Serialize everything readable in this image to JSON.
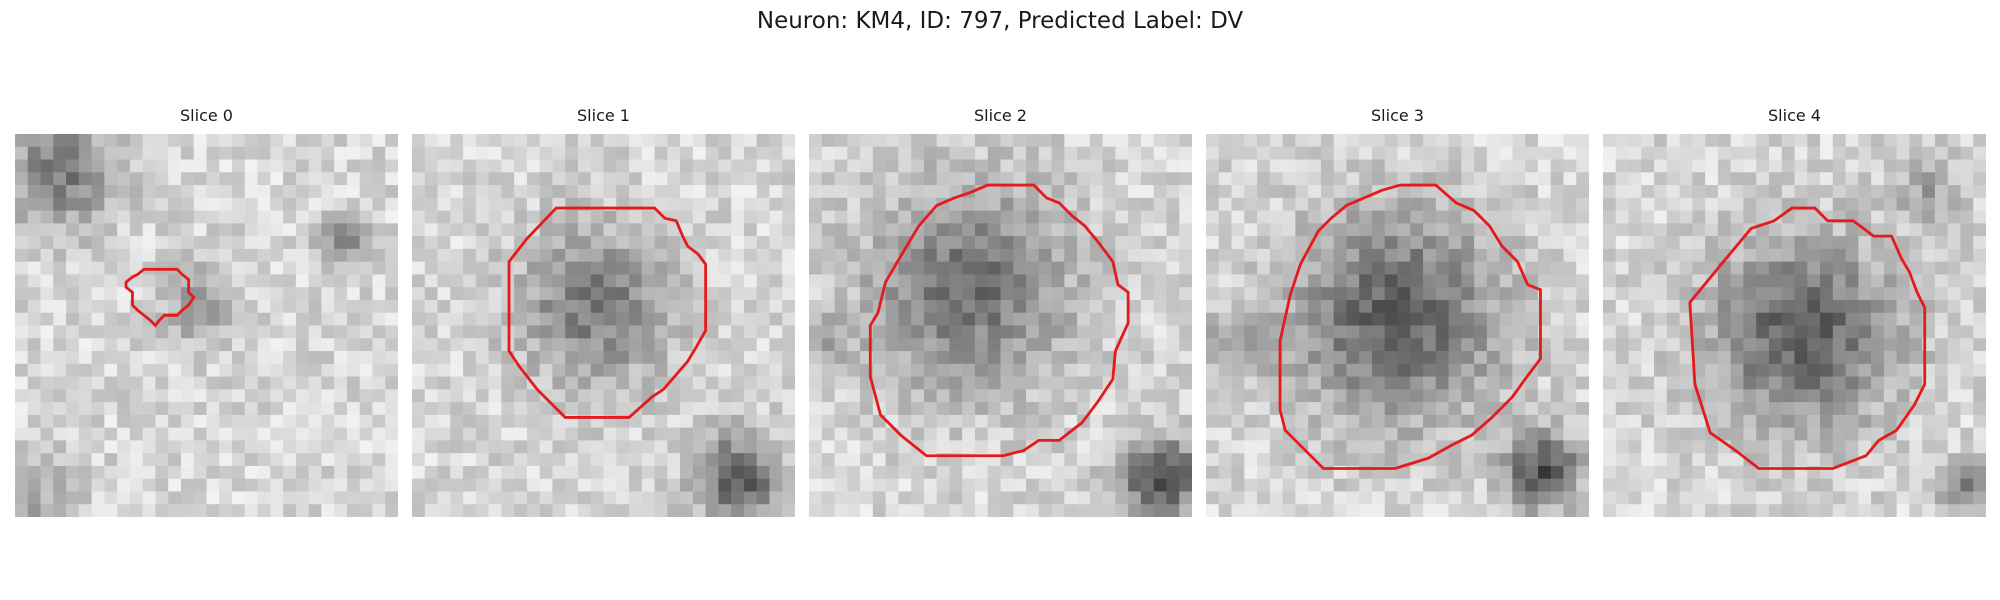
{
  "figure": {
    "title": "Neuron: KM4, ID: 797, Predicted Label: DV"
  },
  "panels": [
    {
      "title": "Slice 0",
      "cell_radius": 0.12,
      "dark_corner": "top-left"
    },
    {
      "title": "Slice 1",
      "cell_radius": 0.25,
      "dark_corner": "bottom-right"
    },
    {
      "title": "Slice 2",
      "cell_radius": 0.33,
      "dark_corner": "bottom-right"
    },
    {
      "title": "Slice 3",
      "cell_radius": 0.33,
      "dark_corner": "bottom-right"
    },
    {
      "title": "Slice 4",
      "cell_radius": 0.29,
      "dark_corner": "bottom-right"
    }
  ],
  "colors": {
    "outline": "#e41a1c",
    "background": "#ffffff"
  }
}
